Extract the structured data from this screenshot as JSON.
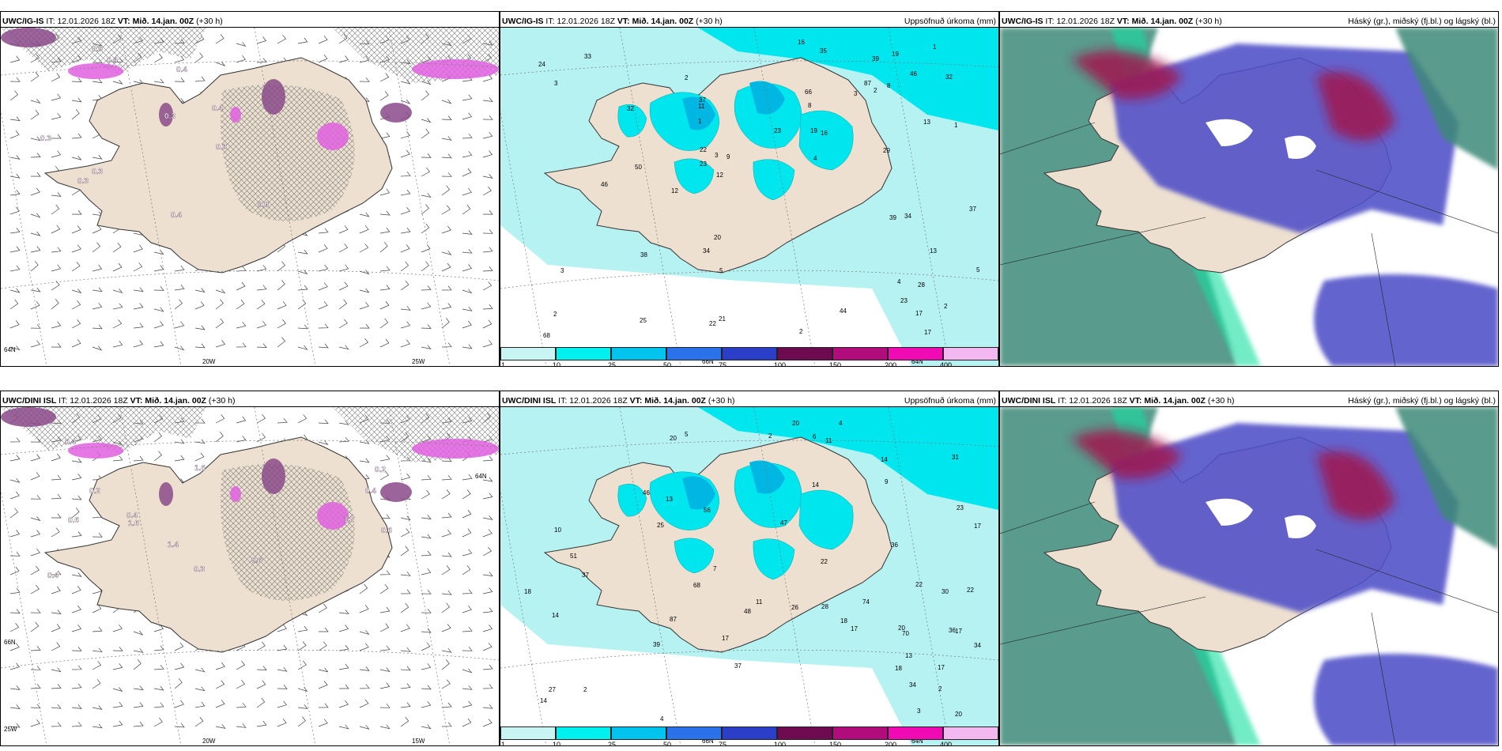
{
  "rows": [
    {
      "model": "UWC/IG-IS",
      "panels": [
        {
          "kind": "wind",
          "model": "UWC/IG-IS",
          "it_label": "IT:",
          "it": "12.01.2026 18Z",
          "vt_label": "VT:",
          "vt": "Mið. 14.jan. 00Z",
          "lead": "(+30 h)",
          "right_title": "",
          "grid_labels": [
            "20W",
            "25W",
            "64N"
          ],
          "values": [
            "0.3",
            "0.0",
            "0.3",
            "0.3",
            "0.4",
            "0.5",
            "0.4",
            "0.3",
            "0.3",
            "0.4",
            "0.4"
          ]
        },
        {
          "kind": "precip",
          "model": "UWC/IG-IS",
          "it_label": "IT:",
          "it": "12.01.2026 18Z",
          "vt_label": "VT:",
          "vt": "Mið. 14.jan. 00Z",
          "lead": "(+30 h)",
          "right_title": "Uppsöfnuð úrkoma (mm)",
          "grid_labels": [
            "66N",
            "64N"
          ],
          "values": [
            "2",
            "1",
            "1",
            "1",
            "2",
            "8",
            "3",
            "3",
            "3",
            "5",
            "2",
            "4",
            "2",
            "12",
            "19",
            "34",
            "22",
            "37",
            "46",
            "68",
            "50",
            "87",
            "44",
            "23",
            "17",
            "35",
            "66",
            "46",
            "38",
            "29",
            "24",
            "13",
            "11",
            "8",
            "19",
            "39",
            "20",
            "22",
            "32",
            "25",
            "37",
            "33",
            "16",
            "17",
            "23",
            "32",
            "21",
            "16",
            "34",
            "5",
            "4",
            "3",
            "28",
            "39",
            "12",
            "23",
            "13",
            "9",
            "2"
          ]
        },
        {
          "kind": "cloud",
          "model": "UWC/IG-IS",
          "it_label": "IT:",
          "it": "12.01.2026 18Z",
          "vt_label": "VT:",
          "vt": "Mið. 14.jan. 00Z",
          "lead": "(+30 h)",
          "right_title": "Háský (gr.), miðský (fj.bl.) og lágský (bl.)",
          "grid_labels": [],
          "values": []
        }
      ]
    },
    {
      "model": "UWC/DINI ISL",
      "panels": [
        {
          "kind": "wind",
          "model": "UWC/DINI ISL",
          "it_label": "IT:",
          "it": "12.01.2026 18Z",
          "vt_label": "VT:",
          "vt": "Mið. 14.jan. 00Z",
          "lead": "(+30 h)",
          "right_title": "",
          "grid_labels": [
            "20W",
            "15W",
            "25W",
            "66N",
            "64N"
          ],
          "values": [
            "1.4",
            "1.6",
            "1.7",
            "1.6",
            "0.6",
            "0.4",
            "0.2",
            "0.4",
            "0.2",
            "0.4",
            "0.3",
            "0.4",
            "0.6",
            "0.6"
          ]
        },
        {
          "kind": "precip",
          "model": "UWC/DINI ISL",
          "it_label": "IT:",
          "it": "12.01.2026 18Z",
          "vt_label": "VT:",
          "vt": "Mið. 14.jan. 00Z",
          "lead": "(+30 h)",
          "right_title": "Uppsöfnuð úrkoma (mm)",
          "grid_labels": [
            "66N",
            "64N"
          ],
          "values": [
            "34",
            "14",
            "46",
            "39",
            "17",
            "17",
            "11",
            "9",
            "20",
            "13",
            "18",
            "30",
            "26",
            "68",
            "87",
            "51",
            "70",
            "56",
            "74",
            "48",
            "37",
            "36",
            "18",
            "22",
            "14",
            "14",
            "17",
            "47",
            "10",
            "20",
            "31",
            "36",
            "25",
            "27",
            "22",
            "13",
            "4",
            "20",
            "20",
            "34",
            "14",
            "11",
            "7",
            "17",
            "28",
            "22",
            "18",
            "6",
            "23",
            "37",
            "17",
            "4",
            "2",
            "2",
            "2",
            "5",
            "3"
          ]
        },
        {
          "kind": "cloud",
          "model": "UWC/DINI ISL",
          "it_label": "IT:",
          "it": "12.01.2026 18Z",
          "vt_label": "VT:",
          "vt": "Mið. 14.jan. 00Z",
          "lead": "(+30 h)",
          "right_title": "Háský (gr.), miðský (fj.bl.) og lágský (bl.)",
          "grid_labels": [],
          "values": []
        }
      ]
    }
  ],
  "colorbar": {
    "labels": [
      "1",
      "10",
      "25",
      "50",
      "75",
      "100",
      "150",
      "200",
      "400"
    ],
    "colors": [
      "#c8f4f4",
      "#00f0f0",
      "#00c4ee",
      "#2a72ea",
      "#2a3ec8",
      "#6e0a50",
      "#b00c7c",
      "#f00ab4",
      "#f4b8f0"
    ]
  },
  "colors": {
    "land": "#ede0d0",
    "coast": "#333333",
    "precip_light": "#b6f2f2",
    "precip_mid": "#00e6ee",
    "precip_heavy": "#00b6e2",
    "wind_purple": "#8a4a8a",
    "wind_magenta": "#e060e0",
    "cloud_high": "#3c8a78",
    "cloud_mid": "#5050c8",
    "cloud_low": "#a01850"
  }
}
